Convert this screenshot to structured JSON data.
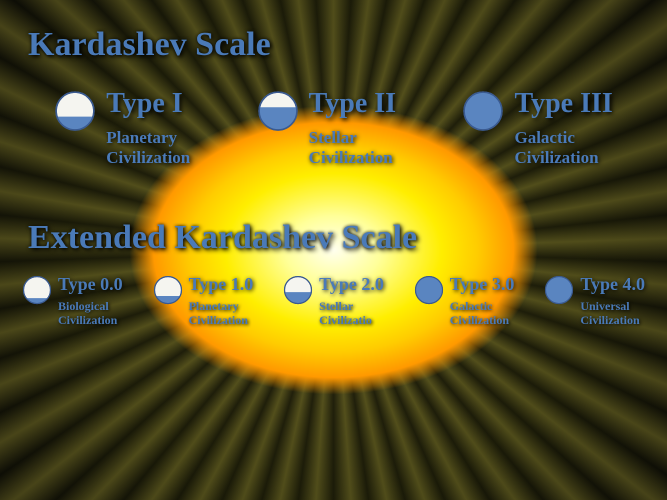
{
  "titleMain": "Kardashev Scale",
  "titleExt": "Extended Kardashev Scale",
  "colors": {
    "text": "#4a7ab8",
    "circleFill": "#5a85c0",
    "circleBg": "#f5f5f0",
    "circleStroke": "#3a5a90"
  },
  "topRow": [
    {
      "type": "Type I",
      "civ1": "Planetary",
      "civ2": "Civilization",
      "fill": 0.35
    },
    {
      "type": "Type II",
      "civ1": "Stellar",
      "civ2": "Civilization",
      "fill": 0.6
    },
    {
      "type": "Type III",
      "civ1": "Galactic",
      "civ2": "Civilization",
      "fill": 1.0
    }
  ],
  "bottomRow": [
    {
      "type": "Type 0.0",
      "civ1": "Biological",
      "civ2": "Civilization",
      "fill": 0.2
    },
    {
      "type": "Type 1.0",
      "civ1": "Planetary",
      "civ2": "Civilization",
      "fill": 0.28
    },
    {
      "type": "Type 2.0",
      "civ1": "Stellar",
      "civ2": "Civilizatio",
      "fill": 0.42
    },
    {
      "type": "Type 3.0",
      "civ1": "Galactic",
      "civ2": "Civilization",
      "fill": 1.0
    },
    {
      "type": "Type 4.0",
      "civ1": "Universal",
      "civ2": "Civilization",
      "fill": 1.0
    }
  ]
}
